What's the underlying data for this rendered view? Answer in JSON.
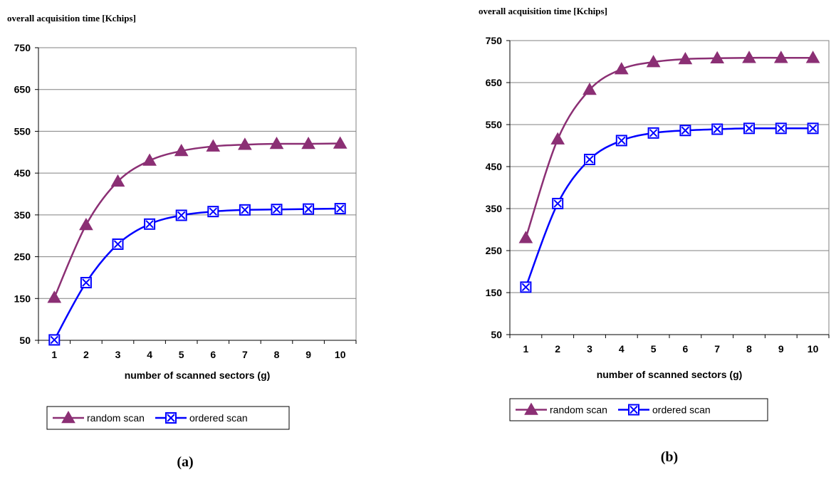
{
  "colors": {
    "random": "#8B2F74",
    "ordered": "#0000FF",
    "grid": "#808080",
    "plot_border": "#808080"
  },
  "chart_data": [
    {
      "type": "line",
      "ylabel": "overall acquisition time [Kchips]",
      "xlabel": "number of scanned sectors (g)",
      "categories": [
        "1",
        "2",
        "3",
        "4",
        "5",
        "6",
        "7",
        "8",
        "9",
        "10"
      ],
      "ylim": [
        50,
        750
      ],
      "yticks": [
        "750",
        "650",
        "550",
        "450",
        "350",
        "250",
        "150",
        "50"
      ],
      "grid": "horizontal",
      "legend": "bottom",
      "caption": "(a)",
      "series": [
        {
          "name": "random scan",
          "marker": "triangle",
          "values": [
            152,
            326,
            430,
            480,
            503,
            514,
            518,
            520,
            520,
            521
          ]
        },
        {
          "name": "ordered scan",
          "marker": "boxed-x",
          "values": [
            51,
            188,
            280,
            328,
            349,
            358,
            362,
            363,
            364,
            365
          ]
        }
      ]
    },
    {
      "type": "line",
      "ylabel": "overall acquisition time [Kchips]",
      "xlabel": "number of scanned sectors (g)",
      "categories": [
        "1",
        "2",
        "3",
        "4",
        "5",
        "6",
        "7",
        "8",
        "9",
        "10"
      ],
      "ylim": [
        50,
        750
      ],
      "yticks": [
        "750",
        "650",
        "550",
        "450",
        "350",
        "250",
        "150",
        "50"
      ],
      "grid": "horizontal",
      "legend": "bottom",
      "caption": "(b)",
      "series": [
        {
          "name": "random scan",
          "marker": "triangle",
          "values": [
            280,
            515,
            633,
            682,
            699,
            706,
            708,
            709,
            709,
            709
          ]
        },
        {
          "name": "ordered scan",
          "marker": "boxed-x",
          "values": [
            163,
            362,
            467,
            512,
            530,
            536,
            539,
            541,
            541,
            541
          ]
        }
      ]
    }
  ]
}
